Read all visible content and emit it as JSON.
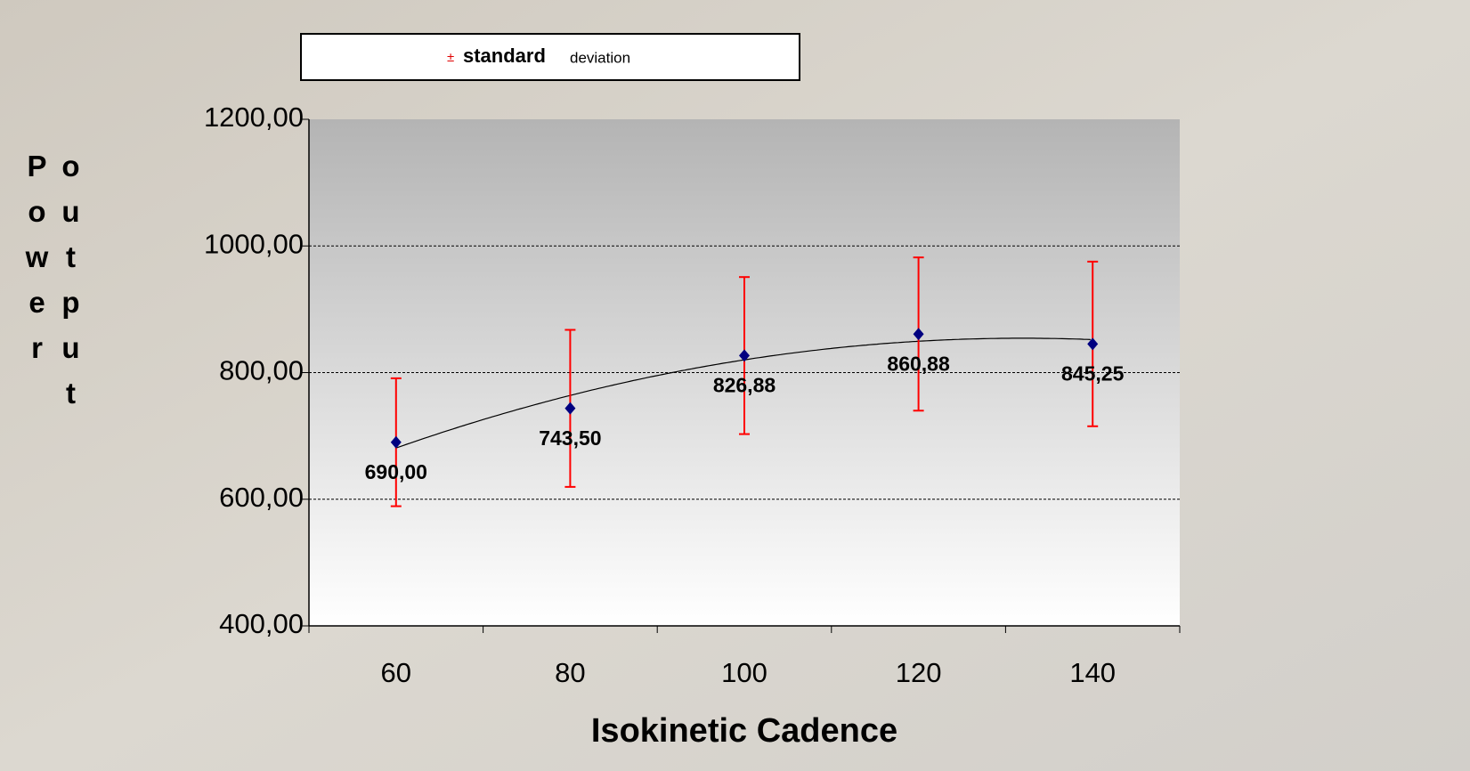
{
  "chart_data": {
    "type": "errorbar",
    "legend": {
      "marker": "±",
      "label": "standard",
      "label_small": "deviation"
    },
    "x_label": "Isokinetic Cadence",
    "y_label": "Power output",
    "categories": [
      "60",
      "80",
      "100",
      "120",
      "140"
    ],
    "values": [
      690.0,
      743.5,
      826.88,
      860.88,
      845.25
    ],
    "value_labels": [
      "690,00",
      "743,50",
      "826,88",
      "860,88",
      "845,25"
    ],
    "errors": [
      101,
      124,
      124,
      121,
      130
    ],
    "color": "#000080",
    "error_color": "#ff0000",
    "ylim": [
      400,
      1200
    ],
    "yticks": [
      {
        "value": 400,
        "label": "400,00"
      },
      {
        "value": 600,
        "label": "600,00"
      },
      {
        "value": 800,
        "label": "800,00"
      },
      {
        "value": 1000,
        "label": "1000,00"
      },
      {
        "value": 1200,
        "label": "1200,00"
      }
    ],
    "grid": true,
    "trendline": true
  }
}
